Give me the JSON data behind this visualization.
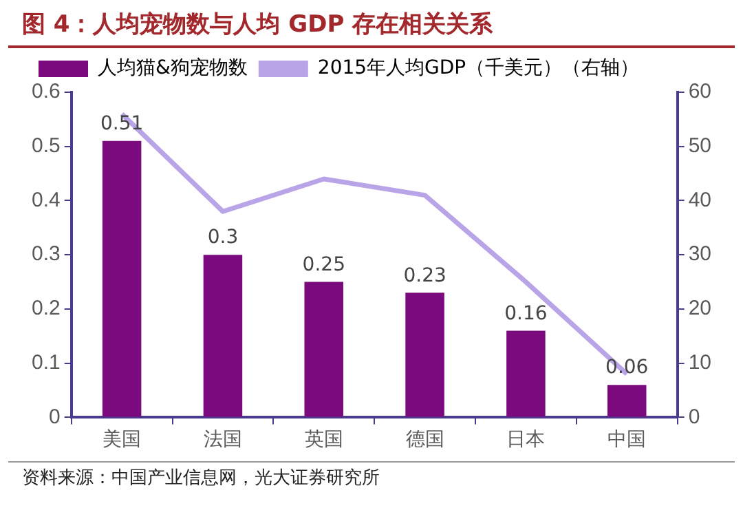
{
  "chart_data": {
    "type": "bar",
    "title": "图 4：人均宠物数与人均 GDP 存在相关关系",
    "categories": [
      "美国",
      "法国",
      "英国",
      "德国",
      "日本",
      "中国"
    ],
    "series": [
      {
        "name": "人均猫&狗宠物数",
        "color": "#7b0a7f",
        "values": [
          0.51,
          0.3,
          0.25,
          0.23,
          0.16,
          0.06
        ],
        "value_labels": [
          "0.51",
          "0.3",
          "0.25",
          "0.23",
          "0.16",
          "0.06"
        ]
      },
      {
        "name": "2015年人均GDP（千美元）（右轴）",
        "type": "line",
        "axis": "y2",
        "color": "#b9a4e8",
        "values": [
          56,
          38,
          44,
          41,
          25,
          8
        ]
      }
    ],
    "ylim": [
      0,
      0.6
    ],
    "yticks": [
      0,
      0.1,
      0.2,
      0.3,
      0.4,
      0.5,
      0.6
    ],
    "y2lim": [
      0,
      60
    ],
    "y2ticks": [
      0,
      10,
      20,
      30,
      40,
      50,
      60
    ],
    "grid": false,
    "legend": "top",
    "marker": "none",
    "annotations": [
      "资料来源：中国产业信息网，光大证券研究所"
    ]
  }
}
